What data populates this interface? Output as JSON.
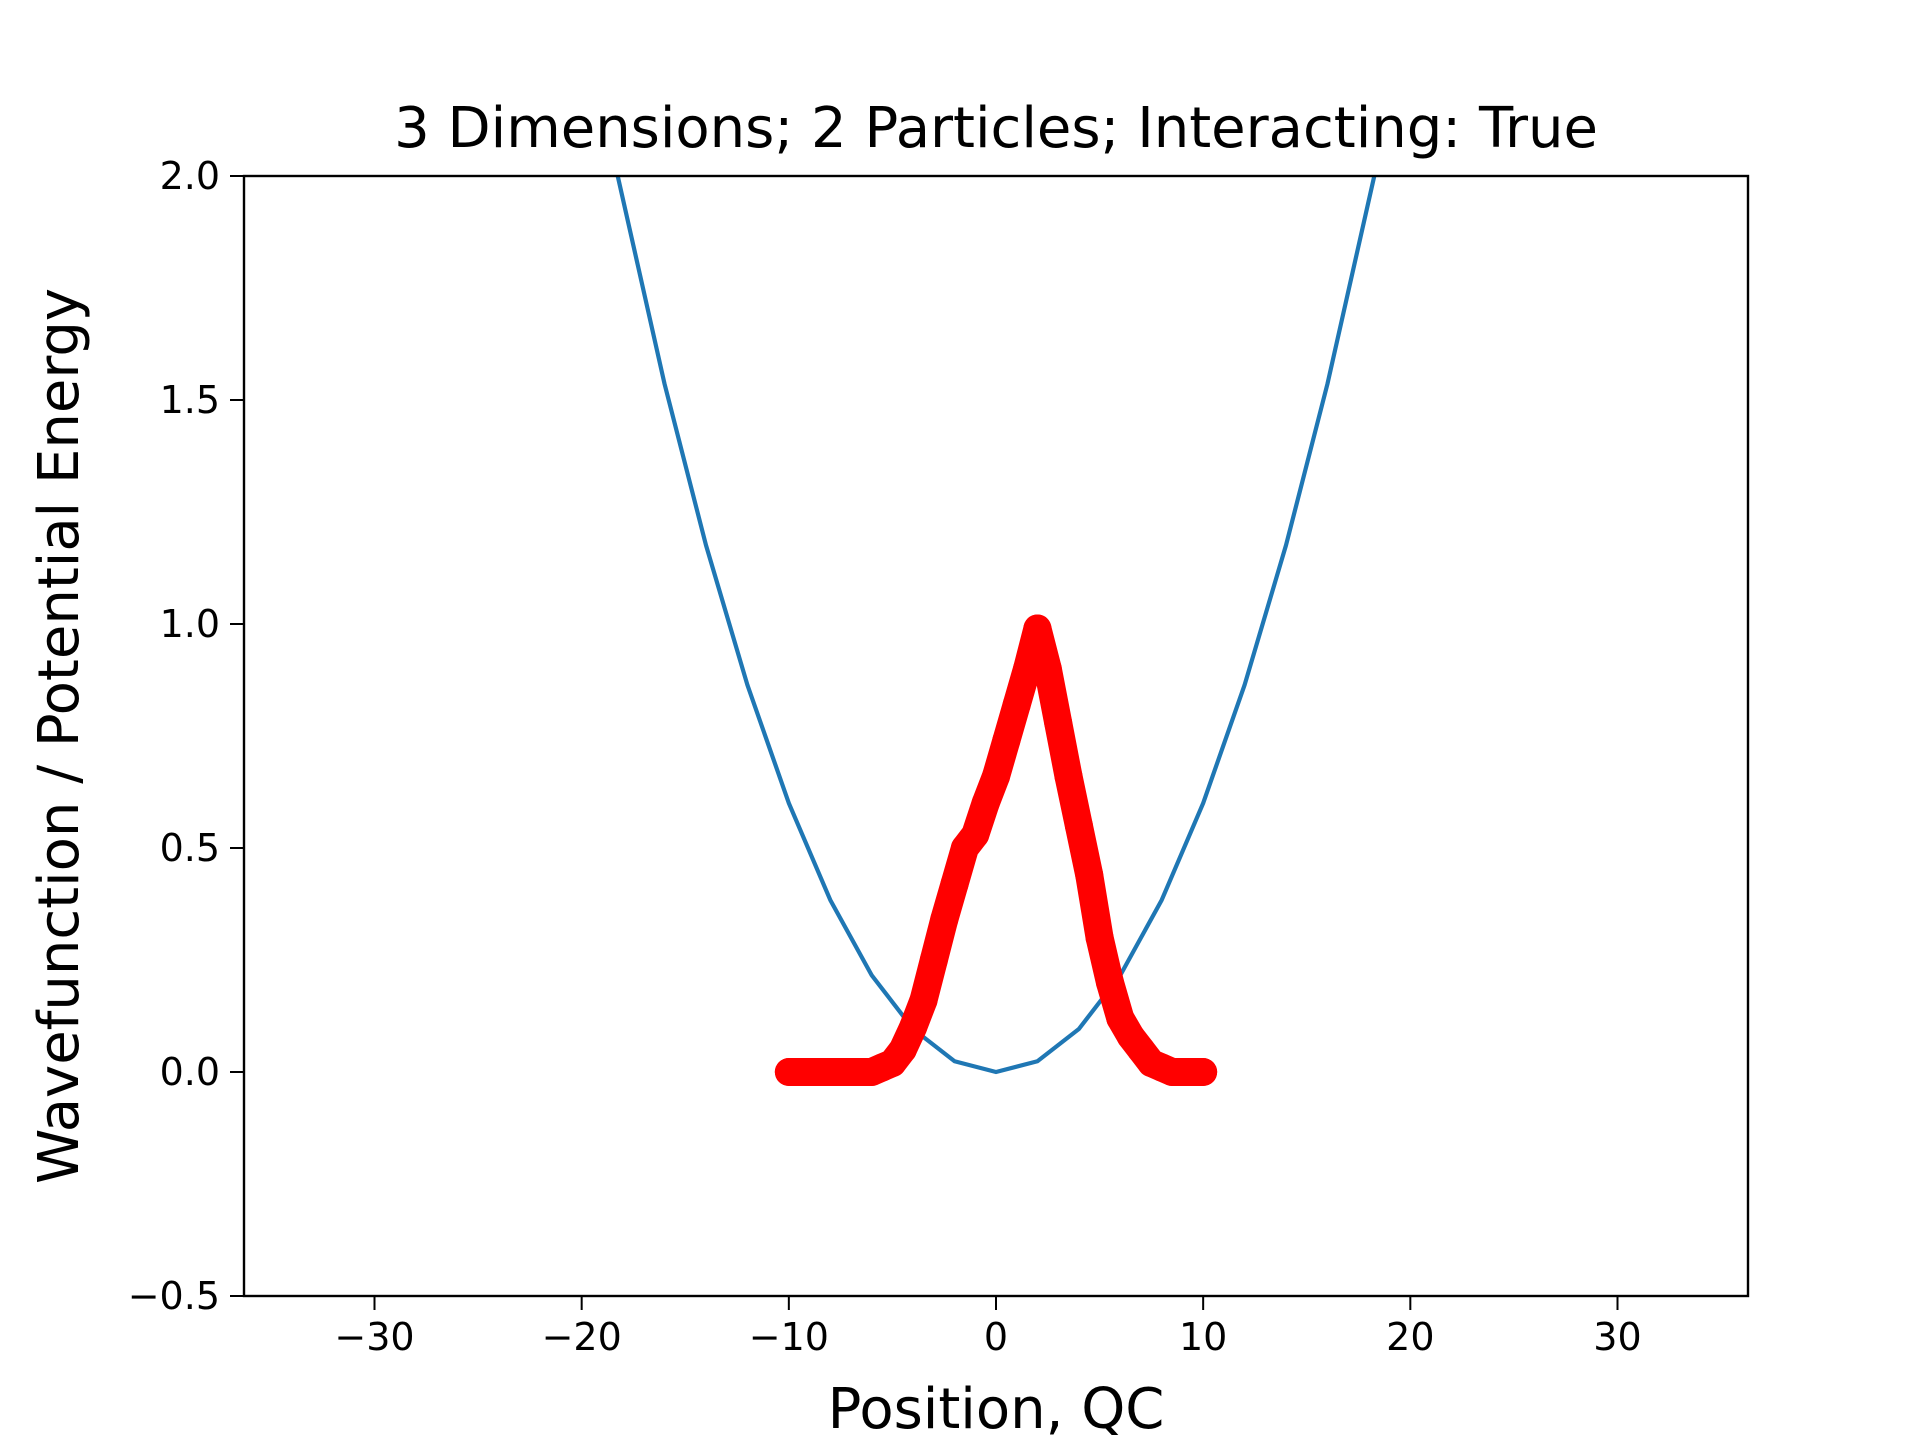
{
  "chart_data": {
    "type": "scatter",
    "title": "3 Dimensions; 2 Particles; Interacting: True",
    "xlabel": "Position, QC",
    "ylabel": "Wavefunction / Potential Energy",
    "xlim": [
      -36.3,
      36.3
    ],
    "ylim": [
      -0.5,
      2.0
    ],
    "xticks": [
      -30,
      -20,
      -10,
      0,
      10,
      20,
      30
    ],
    "xtick_labels": [
      "−30",
      "−20",
      "−10",
      "0",
      "10",
      "20",
      "30"
    ],
    "yticks": [
      -0.5,
      0.0,
      0.5,
      1.0,
      1.5,
      2.0
    ],
    "ytick_labels": [
      "−0.5",
      "0.0",
      "0.5",
      "1.0",
      "1.5",
      "2.0"
    ],
    "grid": false,
    "series": [
      {
        "kind": "line",
        "color": "#1f77b4",
        "equation": "y = 0.006 x^2",
        "x": [
          -18.26,
          -16,
          -14,
          -12,
          -10,
          -8,
          -6,
          -4,
          -2,
          0,
          2,
          4,
          6,
          8,
          10,
          12,
          14,
          16,
          18.26
        ],
        "y": [
          2.0,
          1.536,
          1.176,
          0.864,
          0.6,
          0.384,
          0.216,
          0.096,
          0.024,
          0.0,
          0.024,
          0.096,
          0.216,
          0.384,
          0.6,
          0.864,
          1.176,
          1.536,
          2.0
        ]
      },
      {
        "kind": "scatter",
        "color": "#ff0000",
        "x": [
          -10,
          -9.5,
          -9,
          -8.5,
          -8,
          -7.5,
          -7,
          -6.5,
          -6,
          -5.5,
          -5,
          -4.5,
          -4,
          -3.5,
          -3,
          -2.5,
          -2,
          -1.5,
          -1,
          -0.5,
          0,
          0.5,
          1,
          1.5,
          2,
          2.5,
          3,
          3.5,
          4,
          4.5,
          5,
          5.5,
          6,
          6.5,
          7,
          7.5,
          8,
          8.5,
          9,
          9.5,
          10
        ],
        "y": [
          0.0,
          0.0,
          0.0,
          0.0,
          0.0,
          0.0,
          0.0,
          0.0,
          0.0,
          0.01,
          0.02,
          0.05,
          0.1,
          0.16,
          0.25,
          0.34,
          0.42,
          0.5,
          0.53,
          0.6,
          0.66,
          0.74,
          0.82,
          0.9,
          0.99,
          0.9,
          0.78,
          0.66,
          0.55,
          0.44,
          0.3,
          0.2,
          0.12,
          0.08,
          0.05,
          0.02,
          0.01,
          0.0,
          0.0,
          0.0,
          0.0
        ]
      }
    ]
  }
}
